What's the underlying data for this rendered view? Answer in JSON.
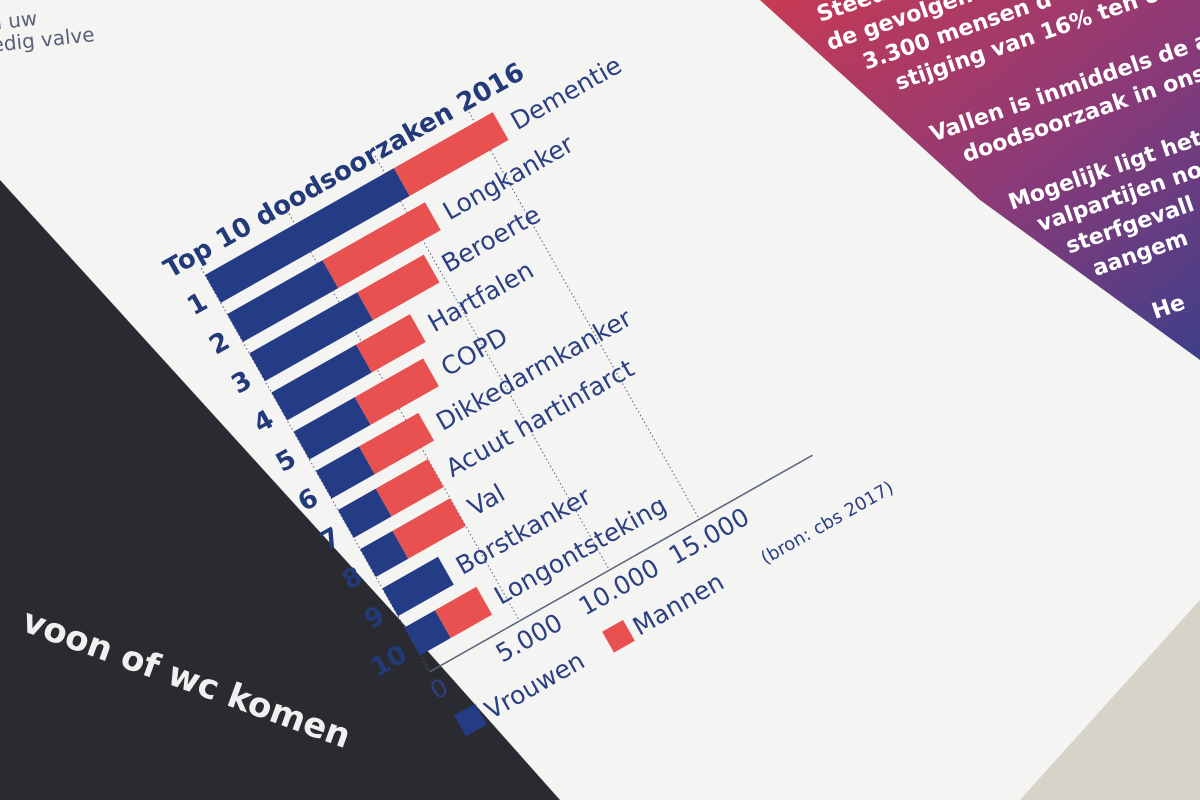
{
  "page": {
    "left_snippet": [
      "u uw",
      "edig valve"
    ],
    "right_snippet": [
      "Steeds",
      "de gevolgen",
      "3.300 mensen d",
      "stijging van 16% ten o",
      "Vallen is inmiddels de ach",
      "doodsoorzaak in ons la",
      "Mogelijk ligt het",
      "valpartijen no",
      "sterfgevall",
      "aangem",
      "He"
    ],
    "dark_snippet": "voon of wc komen"
  },
  "colors": {
    "vrouwen": "#243b85",
    "mannen": "#e8514f",
    "text": "#2b3f82",
    "grid": "#56607a"
  },
  "chart_data": {
    "type": "bar",
    "orientation": "horizontal",
    "stacked": true,
    "title": "Top 10 doodsoorzaken 2016",
    "ranks": [
      "1",
      "2",
      "3",
      "4",
      "5",
      "6",
      "7",
      "8",
      "9",
      "10"
    ],
    "categories": [
      "Dementie",
      "Longkanker",
      "Beroerte",
      "Hartfalen",
      "COPD",
      "Dikkedarmkanker",
      "Acuut hartinfarct",
      "Val",
      "Borstkanker",
      "Longontsteking"
    ],
    "series": [
      {
        "name": "Vrouwen",
        "values": [
          10500,
          5300,
          6000,
          4700,
          3400,
          2400,
          2100,
          1800,
          3100,
          1700
        ]
      },
      {
        "name": "Mannen",
        "values": [
          5500,
          5700,
          3700,
          3000,
          3800,
          3300,
          2900,
          3200,
          0,
          2300
        ]
      }
    ],
    "x_ticks": [
      "0",
      "5.000",
      "10.000",
      "15.000"
    ],
    "xlim": [
      0,
      20000
    ],
    "legend": [
      "Vrouwen",
      "Mannen"
    ],
    "legend_position": "bottom",
    "source": "(bron: cbs 2017)"
  }
}
